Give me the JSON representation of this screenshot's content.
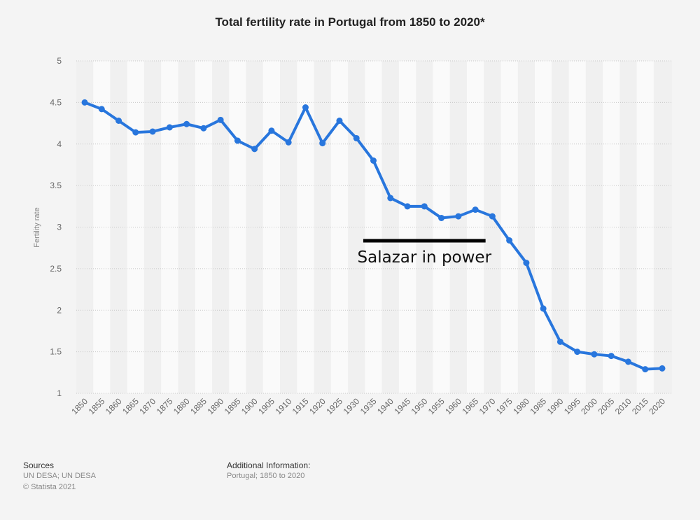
{
  "chart_data": {
    "type": "line",
    "title": "Total fertility rate in Portugal from 1850 to 2020*",
    "xlabel": "",
    "ylabel": "Fertility rate",
    "ylim": [
      1,
      5
    ],
    "yticks": [
      "1",
      "1.5",
      "2",
      "2.5",
      "3",
      "3.5",
      "4",
      "4.5",
      "5"
    ],
    "grid": true,
    "x": [
      1850,
      1855,
      1860,
      1865,
      1870,
      1875,
      1880,
      1885,
      1890,
      1895,
      1900,
      1905,
      1910,
      1915,
      1920,
      1925,
      1930,
      1935,
      1940,
      1945,
      1950,
      1955,
      1960,
      1965,
      1970,
      1975,
      1980,
      1985,
      1990,
      1995,
      2000,
      2005,
      2010,
      2015,
      2020
    ],
    "series": [
      {
        "name": "Fertility rate",
        "color": "#2876dd",
        "values": [
          4.5,
          4.42,
          4.28,
          4.14,
          4.15,
          4.2,
          4.24,
          4.19,
          4.29,
          4.04,
          3.94,
          4.16,
          4.02,
          4.44,
          4.01,
          4.28,
          4.07,
          3.8,
          3.35,
          3.25,
          3.25,
          3.11,
          3.13,
          3.21,
          3.13,
          2.84,
          2.57,
          2.02,
          1.62,
          1.5,
          1.47,
          1.45,
          1.38,
          1.29,
          1.3
        ]
      }
    ],
    "annotation": {
      "text": "Salazar in power",
      "x_start": 1932,
      "x_end": 1968,
      "y": 2.84
    }
  },
  "footer": {
    "sources_title": "Sources",
    "sources_text": "UN DESA; UN DESA",
    "copyright": "© Statista 2021",
    "additional_title": "Additional Information:",
    "additional_text": "Portugal; 1850 to 2020"
  }
}
